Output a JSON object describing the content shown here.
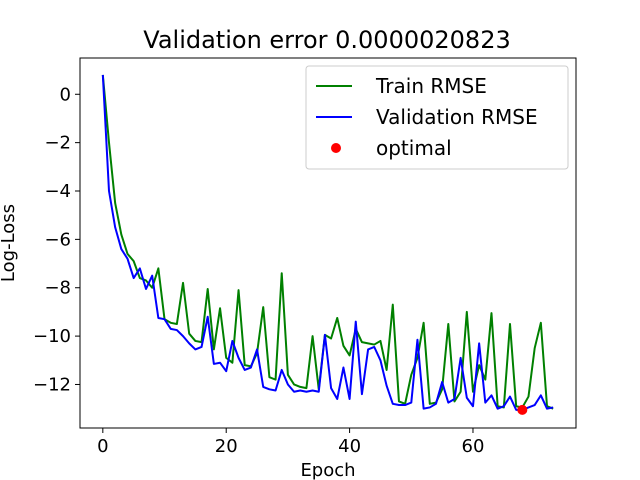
{
  "chart_data": {
    "type": "line",
    "title": "Validation error 0.0000020823",
    "xlabel": "Epoch",
    "ylabel": "Log-Loss",
    "xlim": [
      -3.7,
      76.7
    ],
    "ylim": [
      -13.8,
      1.5
    ],
    "xticks": [
      0,
      20,
      40,
      60
    ],
    "yticks": [
      0,
      -2,
      -4,
      -6,
      -8,
      -10,
      -12
    ],
    "x": [
      0,
      1,
      2,
      3,
      4,
      5,
      6,
      7,
      8,
      9,
      10,
      11,
      12,
      13,
      14,
      15,
      16,
      17,
      18,
      19,
      20,
      21,
      22,
      23,
      24,
      25,
      26,
      27,
      28,
      29,
      30,
      31,
      32,
      33,
      34,
      35,
      36,
      37,
      38,
      39,
      40,
      41,
      42,
      43,
      44,
      45,
      46,
      47,
      48,
      49,
      50,
      51,
      52,
      53,
      54,
      55,
      56,
      57,
      58,
      59,
      60,
      61,
      62,
      63,
      64,
      65,
      66,
      67,
      68,
      69,
      70,
      71,
      72,
      73
    ],
    "series": [
      {
        "name": "Train RMSE",
        "color": "#008000",
        "values": [
          0.8,
          -2.0,
          -4.5,
          -5.8,
          -6.6,
          -6.9,
          -7.6,
          -7.7,
          -8.0,
          -7.2,
          -9.3,
          -9.45,
          -9.5,
          -7.8,
          -9.9,
          -10.2,
          -10.25,
          -8.05,
          -10.55,
          -8.85,
          -10.9,
          -11.1,
          -8.1,
          -11.2,
          -11.25,
          -10.7,
          -8.8,
          -11.7,
          -11.8,
          -7.4,
          -11.6,
          -12.0,
          -12.1,
          -12.15,
          -10.0,
          -12.2,
          -9.95,
          -10.1,
          -9.25,
          -10.4,
          -10.8,
          -9.7,
          -10.25,
          -10.3,
          -10.35,
          -10.2,
          -11.4,
          -8.7,
          -12.7,
          -12.8,
          -11.6,
          -10.9,
          -9.45,
          -12.8,
          -12.75,
          -12.2,
          -9.5,
          -12.7,
          -12.3,
          -9.0,
          -12.3,
          -11.2,
          -11.8,
          -9.05,
          -12.9,
          -12.95,
          -9.5,
          -12.9,
          -12.95,
          -12.5,
          -10.5,
          -9.45,
          -12.9,
          -13.0
        ]
      },
      {
        "name": "Validation RMSE",
        "color": "#0000ff",
        "values": [
          0.8,
          -4.0,
          -5.5,
          -6.4,
          -6.8,
          -7.6,
          -7.2,
          -8.05,
          -7.5,
          -9.25,
          -9.3,
          -9.7,
          -9.75,
          -10.0,
          -10.3,
          -10.55,
          -10.45,
          -9.2,
          -11.15,
          -11.1,
          -11.45,
          -10.2,
          -10.9,
          -11.4,
          -11.3,
          -10.55,
          -12.1,
          -12.2,
          -12.25,
          -11.4,
          -12.0,
          -12.3,
          -12.25,
          -12.3,
          -12.25,
          -12.3,
          -9.95,
          -12.15,
          -12.6,
          -11.3,
          -12.6,
          -9.4,
          -12.4,
          -10.55,
          -10.45,
          -11.0,
          -12.05,
          -12.8,
          -12.85,
          -12.85,
          -12.75,
          -10.15,
          -13.0,
          -12.95,
          -12.8,
          -11.9,
          -12.75,
          -12.6,
          -10.9,
          -12.55,
          -12.9,
          -10.3,
          -12.75,
          -12.45,
          -13.0,
          -12.9,
          -12.5,
          -13.05,
          -13.05,
          -12.95,
          -12.85,
          -12.45,
          -13.0,
          -12.95
        ]
      }
    ],
    "points": [
      {
        "name": "optimal",
        "color": "#ff0000",
        "x": 68,
        "y": -13.05
      }
    ],
    "legend_position": "top-right",
    "grid": false
  }
}
